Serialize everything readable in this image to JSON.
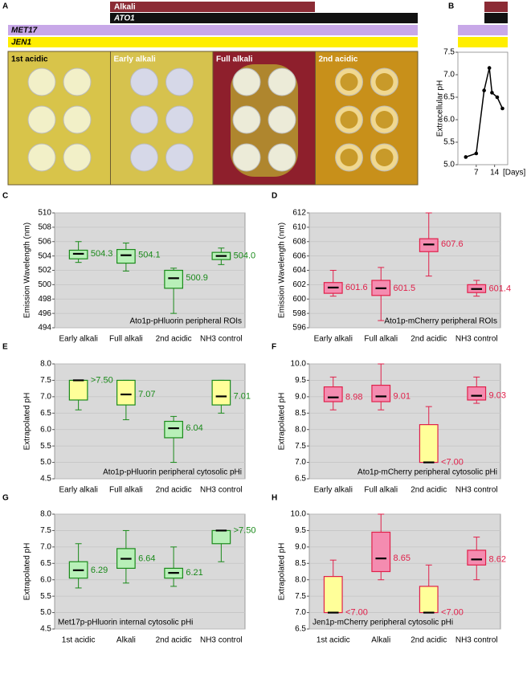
{
  "figure": {
    "panel_a": {
      "letter": "A",
      "bars": [
        "Alkali",
        "ATO1",
        "MET17",
        "JEN1"
      ],
      "stages": [
        "1st acidic",
        "Early alkali",
        "Full alkali",
        "2nd acidic"
      ]
    }
  },
  "chart_data": [
    {
      "type": "line",
      "panel": "B",
      "ylabel": "Extracellular pH",
      "xlabel": "[Days]",
      "x": [
        3,
        7,
        10,
        12,
        13,
        15,
        17
      ],
      "values": [
        5.17,
        5.25,
        6.65,
        7.15,
        6.6,
        6.5,
        6.25
      ],
      "color": "#000000",
      "xlim": [
        0,
        19
      ],
      "xticks": [
        7,
        14
      ],
      "ylim": [
        5,
        7.5
      ],
      "yticks": [
        {
          "value": 5,
          "label": "5.0"
        },
        5.5,
        {
          "value": 6,
          "label": "6.0"
        },
        6.5,
        {
          "value": 7,
          "label": "7.0"
        },
        7.5
      ]
    },
    {
      "type": "box",
      "panel": "C",
      "ylabel": "Emission Wavelength (nm)",
      "annotation": "Ato1p-pHluorin peripheral ROIs",
      "categories": [
        "Early alkali",
        "Full alkali",
        "2nd acidic",
        "NH3 control"
      ],
      "color": "#1a8a1a",
      "fills": [
        "#b8f0b8",
        "#b8f0b8",
        "#b8f0b8",
        "#b8f0b8"
      ],
      "boxes": [
        {
          "low": 503.1,
          "q1": 503.6,
          "median": 504.3,
          "q3": 504.8,
          "high": 506
        },
        {
          "low": 501.9,
          "q1": 503,
          "median": 504.1,
          "q3": 504.9,
          "high": 505.8
        },
        {
          "low": 496,
          "q1": 499.5,
          "median": 500.9,
          "q3": 502,
          "high": 502.3
        },
        {
          "low": 502.8,
          "q1": 503.5,
          "median": 504,
          "q3": 504.5,
          "high": 505.1
        }
      ],
      "value_labels": [
        "504.3",
        "504.1",
        "500.9",
        "504.0"
      ],
      "ylim": [
        494,
        510
      ],
      "yticks": [
        494,
        496,
        498,
        500,
        502,
        504,
        506,
        508,
        510
      ],
      "grid": true
    },
    {
      "type": "box",
      "panel": "D",
      "ylabel": "Emission Wavelength (nm)",
      "annotation": "Ato1p-mCherry peripheral ROIs",
      "categories": [
        "Early alkali",
        "Full alkali",
        "2nd acidic",
        "NH3 control"
      ],
      "color": "#e0204a",
      "fills": [
        "#f48cb0",
        "#f48cb0",
        "#f48cb0",
        "#f48cb0"
      ],
      "boxes": [
        {
          "low": 600.4,
          "q1": 600.8,
          "median": 601.6,
          "q3": 602.3,
          "high": 604
        },
        {
          "low": 597,
          "q1": 600.5,
          "median": 601.5,
          "q3": 602.6,
          "high": 604.4
        },
        {
          "low": 603.2,
          "q1": 606.6,
          "median": 607.6,
          "q3": 608.4,
          "high": 612
        },
        {
          "low": 600.4,
          "q1": 600.9,
          "median": 601.4,
          "q3": 602,
          "high": 602.6
        }
      ],
      "value_labels": [
        "601.6",
        "601.5",
        "607.6",
        "601.4"
      ],
      "ylim": [
        596,
        612
      ],
      "yticks": [
        596,
        598,
        600,
        602,
        604,
        606,
        608,
        610,
        612
      ],
      "grid": true
    },
    {
      "type": "box",
      "panel": "E",
      "ylabel": "Extrapolated pH",
      "annotation": "Ato1p-pHluorin peripheral cytosolic pHi",
      "categories": [
        "Early alkali",
        "Full alkali",
        "2nd acidic",
        "NH3 control"
      ],
      "color": "#1a8a1a",
      "fills": [
        "#ffff99",
        "#ffff99",
        "#b8f0b8",
        "#ffff99"
      ],
      "boxes": [
        {
          "low": 6.6,
          "q1": 6.9,
          "median": 7.5,
          "q3": 7.5,
          "high": 7.5
        },
        {
          "low": 6.3,
          "q1": 6.75,
          "median": 7.07,
          "q3": 7.5,
          "high": 7.5
        },
        {
          "low": 5,
          "q1": 5.75,
          "median": 6.04,
          "q3": 6.25,
          "high": 6.4
        },
        {
          "low": 6.5,
          "q1": 6.75,
          "median": 7.01,
          "q3": 7.5,
          "high": 7.5
        }
      ],
      "value_labels": [
        ">7.50",
        "7.07",
        "6.04",
        "7.01"
      ],
      "ylim": [
        4.5,
        8
      ],
      "yticks": [
        4.5,
        {
          "value": 5,
          "label": "5.0"
        },
        5.5,
        {
          "value": 6,
          "label": "6.0"
        },
        6.5,
        {
          "value": 7,
          "label": "7.0"
        },
        7.5,
        {
          "value": 8,
          "label": "8.0"
        }
      ],
      "grid": true
    },
    {
      "type": "box",
      "panel": "F",
      "ylabel": "Extrapolated pH",
      "annotation": "Ato1p-mCherry peripheral cytosolic pHi",
      "categories": [
        "Early alkali",
        "Full alkali",
        "2nd acidic",
        "NH3 control"
      ],
      "color": "#e0204a",
      "fills": [
        "#f48cb0",
        "#f48cb0",
        "#ffff99",
        "#f48cb0"
      ],
      "boxes": [
        {
          "low": 8.6,
          "q1": 8.85,
          "median": 8.98,
          "q3": 9.3,
          "high": 9.6
        },
        {
          "low": 8.6,
          "q1": 8.85,
          "median": 9.01,
          "q3": 9.35,
          "high": 10
        },
        {
          "low": 7,
          "q1": 7,
          "median": 7,
          "q3": 8.15,
          "high": 8.7
        },
        {
          "low": 8.8,
          "q1": 8.9,
          "median": 9.03,
          "q3": 9.3,
          "high": 9.6
        }
      ],
      "value_labels": [
        "8.98",
        "9.01",
        "<7.00",
        "9.03"
      ],
      "ylim": [
        6.5,
        10
      ],
      "yticks": [
        6.5,
        {
          "value": 7,
          "label": "7.0"
        },
        7.5,
        {
          "value": 8,
          "label": "8.0"
        },
        8.5,
        {
          "value": 9,
          "label": "9.0"
        },
        9.5,
        {
          "value": 10,
          "label": "10.0"
        }
      ],
      "grid": true
    },
    {
      "type": "box",
      "panel": "G",
      "ylabel": "Extrapolated pH",
      "annotation": "Met17p-pHluorin internal cytosolic pHi",
      "categories": [
        "1st acidic",
        "Alkali",
        "2nd acidic",
        "NH3 control"
      ],
      "color": "#1a8a1a",
      "fills": [
        "#b8f0b8",
        "#b8f0b8",
        "#b8f0b8",
        "#b8f0b8"
      ],
      "boxes": [
        {
          "low": 5.75,
          "q1": 6.05,
          "median": 6.29,
          "q3": 6.55,
          "high": 7.1
        },
        {
          "low": 5.9,
          "q1": 6.35,
          "median": 6.64,
          "q3": 6.95,
          "high": 7.5
        },
        {
          "low": 5.8,
          "q1": 6.05,
          "median": 6.21,
          "q3": 6.35,
          "high": 7
        },
        {
          "low": 6.55,
          "q1": 7.1,
          "median": 7.5,
          "q3": 7.5,
          "high": 7.5
        }
      ],
      "value_labels": [
        "6.29",
        "6.64",
        "6.21",
        ">7.50"
      ],
      "ylim": [
        4.5,
        8
      ],
      "yticks": [
        4.5,
        {
          "value": 5,
          "label": "5.0"
        },
        5.5,
        {
          "value": 6,
          "label": "6.0"
        },
        6.5,
        {
          "value": 7,
          "label": "7.0"
        },
        7.5,
        {
          "value": 8,
          "label": "8.0"
        }
      ],
      "grid": true
    },
    {
      "type": "box",
      "panel": "H",
      "ylabel": "Extrapolated pH",
      "annotation": "Jen1p-mCherry peripheral cytosolic pHi",
      "categories": [
        "1st acidic",
        "Alkali",
        "2nd acidic",
        "NH3 control"
      ],
      "color": "#e0204a",
      "fills": [
        "#ffff99",
        "#f48cb0",
        "#ffff99",
        "#f48cb0"
      ],
      "boxes": [
        {
          "low": 7,
          "q1": 7,
          "median": 7,
          "q3": 8.1,
          "high": 8.6
        },
        {
          "low": 8,
          "q1": 8.25,
          "median": 8.65,
          "q3": 9.45,
          "high": 10
        },
        {
          "low": 7,
          "q1": 7,
          "median": 7,
          "q3": 7.8,
          "high": 8.45
        },
        {
          "low": 8,
          "q1": 8.45,
          "median": 8.62,
          "q3": 8.9,
          "high": 9.3
        }
      ],
      "value_labels": [
        "<7.00",
        "8.65",
        "<7.00",
        "8.62"
      ],
      "ylim": [
        6.5,
        10
      ],
      "yticks": [
        6.5,
        {
          "value": 7,
          "label": "7.0"
        },
        7.5,
        {
          "value": 8,
          "label": "8.0"
        },
        8.5,
        {
          "value": 9,
          "label": "9.0"
        },
        9.5,
        {
          "value": 10,
          "label": "10.0"
        }
      ],
      "grid": true
    }
  ]
}
